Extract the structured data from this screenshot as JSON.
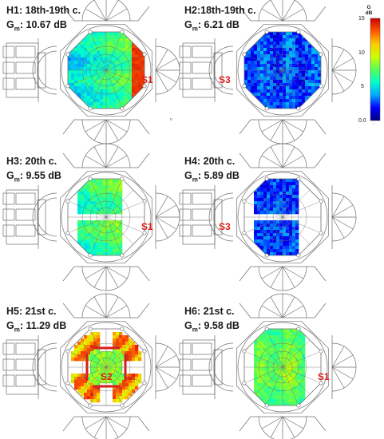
{
  "panels": [
    {
      "id": "H1",
      "title": "H1: 18th-19th c.",
      "g_label": "G",
      "g_sub": "m",
      "g_value": ": 10.67 dB",
      "source": "S1",
      "pattern": "warm"
    },
    {
      "id": "H2",
      "title": "H2:18th-19th c.",
      "g_label": "G",
      "g_sub": "m",
      "g_value": ": 6.21 dB",
      "source": "S3",
      "pattern": "cool"
    },
    {
      "id": "H3",
      "title": "H3: 20th c.",
      "g_label": "G",
      "g_sub": "m",
      "g_value": ": 9.55 dB",
      "source": "S1",
      "pattern": "warm-split"
    },
    {
      "id": "H4",
      "title": "H4: 20th c.",
      "g_label": "G",
      "g_sub": "m",
      "g_value": ": 5.89 dB",
      "source": "S3",
      "pattern": "cool-split"
    },
    {
      "id": "H5",
      "title": "H5: 21st c.",
      "g_label": "G",
      "g_sub": "m",
      "g_value": ": 11.29 dB",
      "source": "S2",
      "pattern": "ring"
    },
    {
      "id": "H6",
      "title": "H6: 21st c.",
      "g_label": "G",
      "g_sub": "m",
      "g_value": ": 9.58 dB",
      "source": "S1",
      "pattern": "half"
    }
  ],
  "colorbar": {
    "title": "G",
    "unit": "dB",
    "ticks": [
      "15",
      "10",
      "5",
      "0.0"
    ],
    "min": 0,
    "max": 15,
    "colors": [
      "#00007f",
      "#0000ff",
      "#00aaff",
      "#00ffcc",
      "#55ff55",
      "#ccff00",
      "#ffcc00",
      "#ff5500",
      "#cc0000"
    ]
  },
  "page_marks": [
    "n",
    ".."
  ],
  "colors": {
    "source_label": "#e01b1b",
    "line": "#6f6f6f"
  }
}
